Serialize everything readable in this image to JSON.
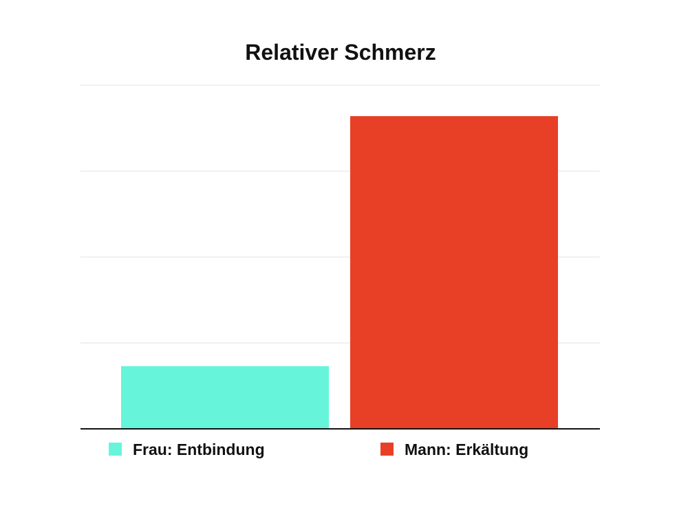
{
  "chart_data": {
    "type": "bar",
    "title": "Relativer Schmerz",
    "categories": [
      "Frau: Entbindung",
      "Mann: Erkältung"
    ],
    "values": [
      0.73,
      3.64
    ],
    "ylim": [
      0,
      4
    ],
    "grid": true,
    "yticks_visible": false,
    "xlabel": "",
    "ylabel": "",
    "legend": {
      "placement": "bottom",
      "entries": [
        "Frau: Entbindung",
        "Mann: Erkältung"
      ]
    },
    "colors": [
      "#66F5DA",
      "#E84026"
    ],
    "grid_color": "#E6E6E6",
    "axis_color": "#111111"
  }
}
